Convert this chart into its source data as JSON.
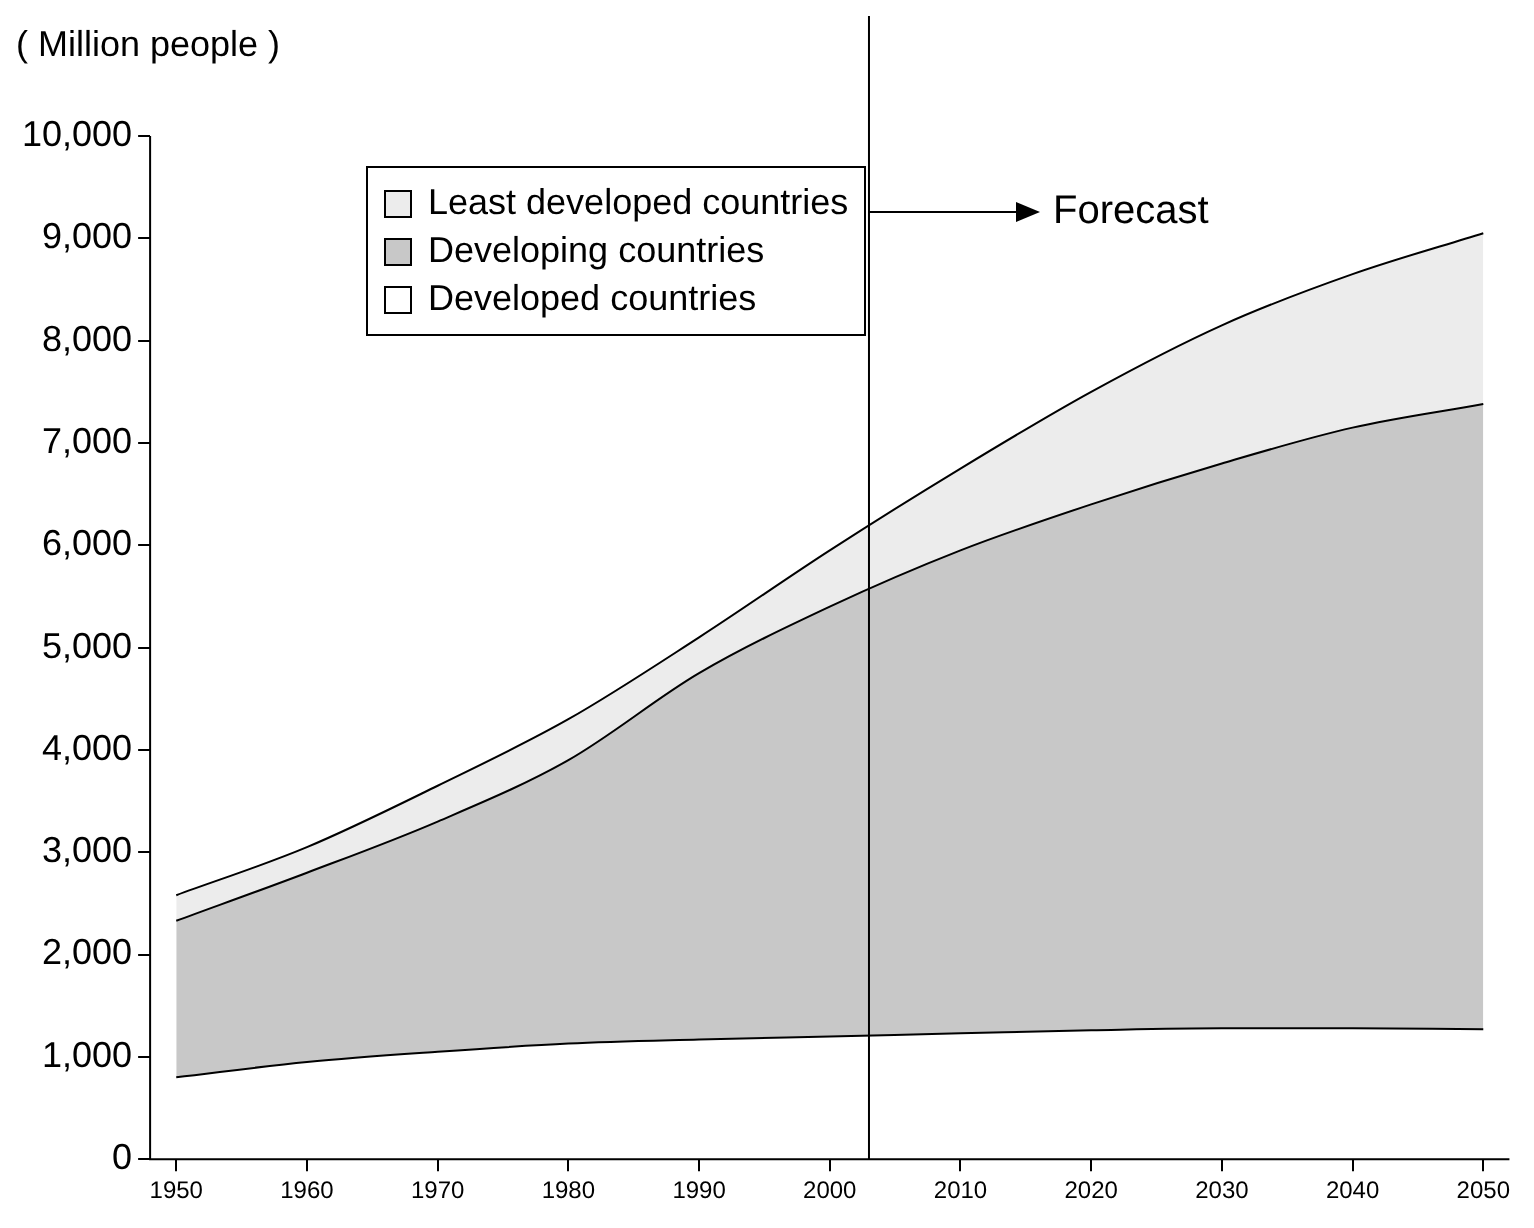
{
  "chart_data": {
    "type": "area",
    "stacked": true,
    "ylabel": "( Million people )",
    "x": [
      1950,
      1960,
      1970,
      1980,
      1990,
      2000,
      2010,
      2020,
      2030,
      2040,
      2050
    ],
    "series": [
      {
        "name": "Developed countries",
        "color": "#ffffff",
        "values": [
          800,
          950,
          1050,
          1130,
          1170,
          1200,
          1230,
          1260,
          1280,
          1280,
          1270
        ]
      },
      {
        "name": "Developing countries",
        "color": "#c8c8c8",
        "values": [
          1530,
          1850,
          2250,
          2770,
          3580,
          4200,
          4720,
          5140,
          5520,
          5870,
          6110
        ]
      },
      {
        "name": "Least developed countries",
        "color": "#ececec",
        "values": [
          250,
          250,
          350,
          400,
          350,
          550,
          800,
          1100,
          1350,
          1500,
          1670
        ]
      }
    ],
    "xlim": [
      1948,
      2052
    ],
    "xticks": [
      1950,
      1960,
      1970,
      1980,
      1990,
      2000,
      2010,
      2020,
      2030,
      2040,
      2050
    ],
    "ylim": [
      0,
      10000
    ],
    "yticks": [
      0,
      {
        "value": 1000,
        "label": "1,000"
      },
      {
        "value": 2000,
        "label": "2,000"
      },
      {
        "value": 3000,
        "label": "3,000"
      },
      {
        "value": 4000,
        "label": "4,000"
      },
      {
        "value": 5000,
        "label": "5,000"
      },
      {
        "value": 6000,
        "label": "6,000"
      },
      {
        "value": 7000,
        "label": "7,000"
      },
      {
        "value": 8000,
        "label": "8,000"
      },
      {
        "value": 9000,
        "label": "9,000"
      },
      {
        "value": 10000,
        "label": "10,000"
      }
    ],
    "grid": false,
    "legend": "top left",
    "ref_lines": [
      {
        "axis": "x",
        "value": 2003,
        "color": "#000000"
      }
    ],
    "annotations": [
      "Forecast"
    ]
  }
}
